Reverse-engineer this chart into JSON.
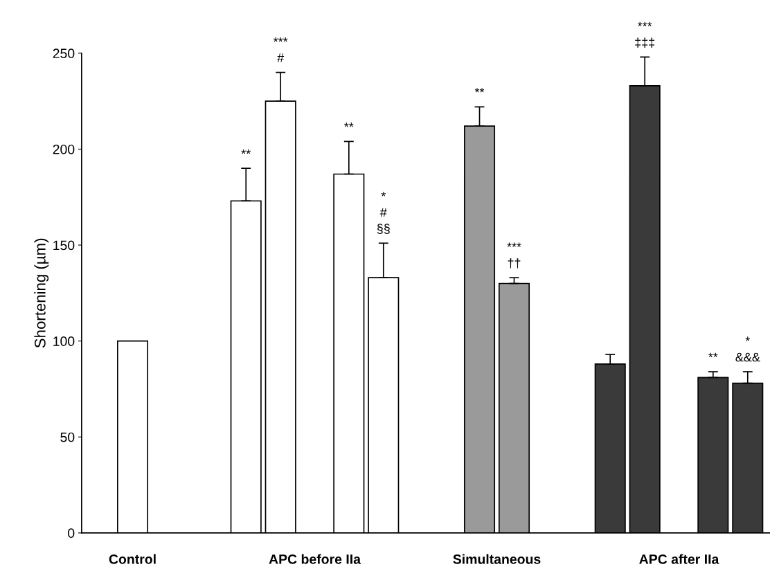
{
  "chart_data": {
    "type": "bar",
    "ylabel": "Shortening (µm)",
    "categories": [
      "Control",
      "APC before IIa",
      "Simultaneous",
      "APC after IIa"
    ],
    "series": [
      {
        "colors": [
          "#ffffff",
          null,
          null,
          "#3a3a3a"
        ],
        "values": [
          100,
          null,
          null,
          88
        ],
        "errors": [
          null,
          null,
          null,
          5
        ]
      },
      {
        "colors": [
          null,
          "#ffffff",
          "#9a9a9a",
          null
        ],
        "values": [
          null,
          173,
          212,
          null
        ],
        "errors": [
          null,
          17,
          10,
          null
        ]
      },
      {
        "colors": [
          null,
          "#ffffff",
          "#9a9a9a",
          "#3a3a3a"
        ],
        "values": [
          null,
          225,
          130,
          233
        ],
        "errors": [
          null,
          15,
          3,
          15
        ]
      },
      {
        "colors": [
          null,
          "#ffffff",
          null,
          "#3a3a3a"
        ],
        "values": [
          null,
          187,
          null,
          81
        ],
        "errors": [
          null,
          17,
          null,
          3
        ]
      },
      {
        "colors": [
          null,
          "#ffffff",
          null,
          "#3a3a3a"
        ],
        "values": [
          null,
          133,
          null,
          78
        ],
        "errors": [
          null,
          18,
          null,
          6
        ]
      }
    ],
    "ylim": [
      0,
      250
    ],
    "yticks": [
      0,
      50,
      100,
      150,
      200,
      250
    ],
    "grid": false,
    "legend": false,
    "annotations": [
      "**",
      "***\n#",
      "**",
      "*\n#\n§§",
      "**",
      "***\n††",
      "***\n‡‡‡",
      "**",
      "*\n&&&"
    ]
  }
}
